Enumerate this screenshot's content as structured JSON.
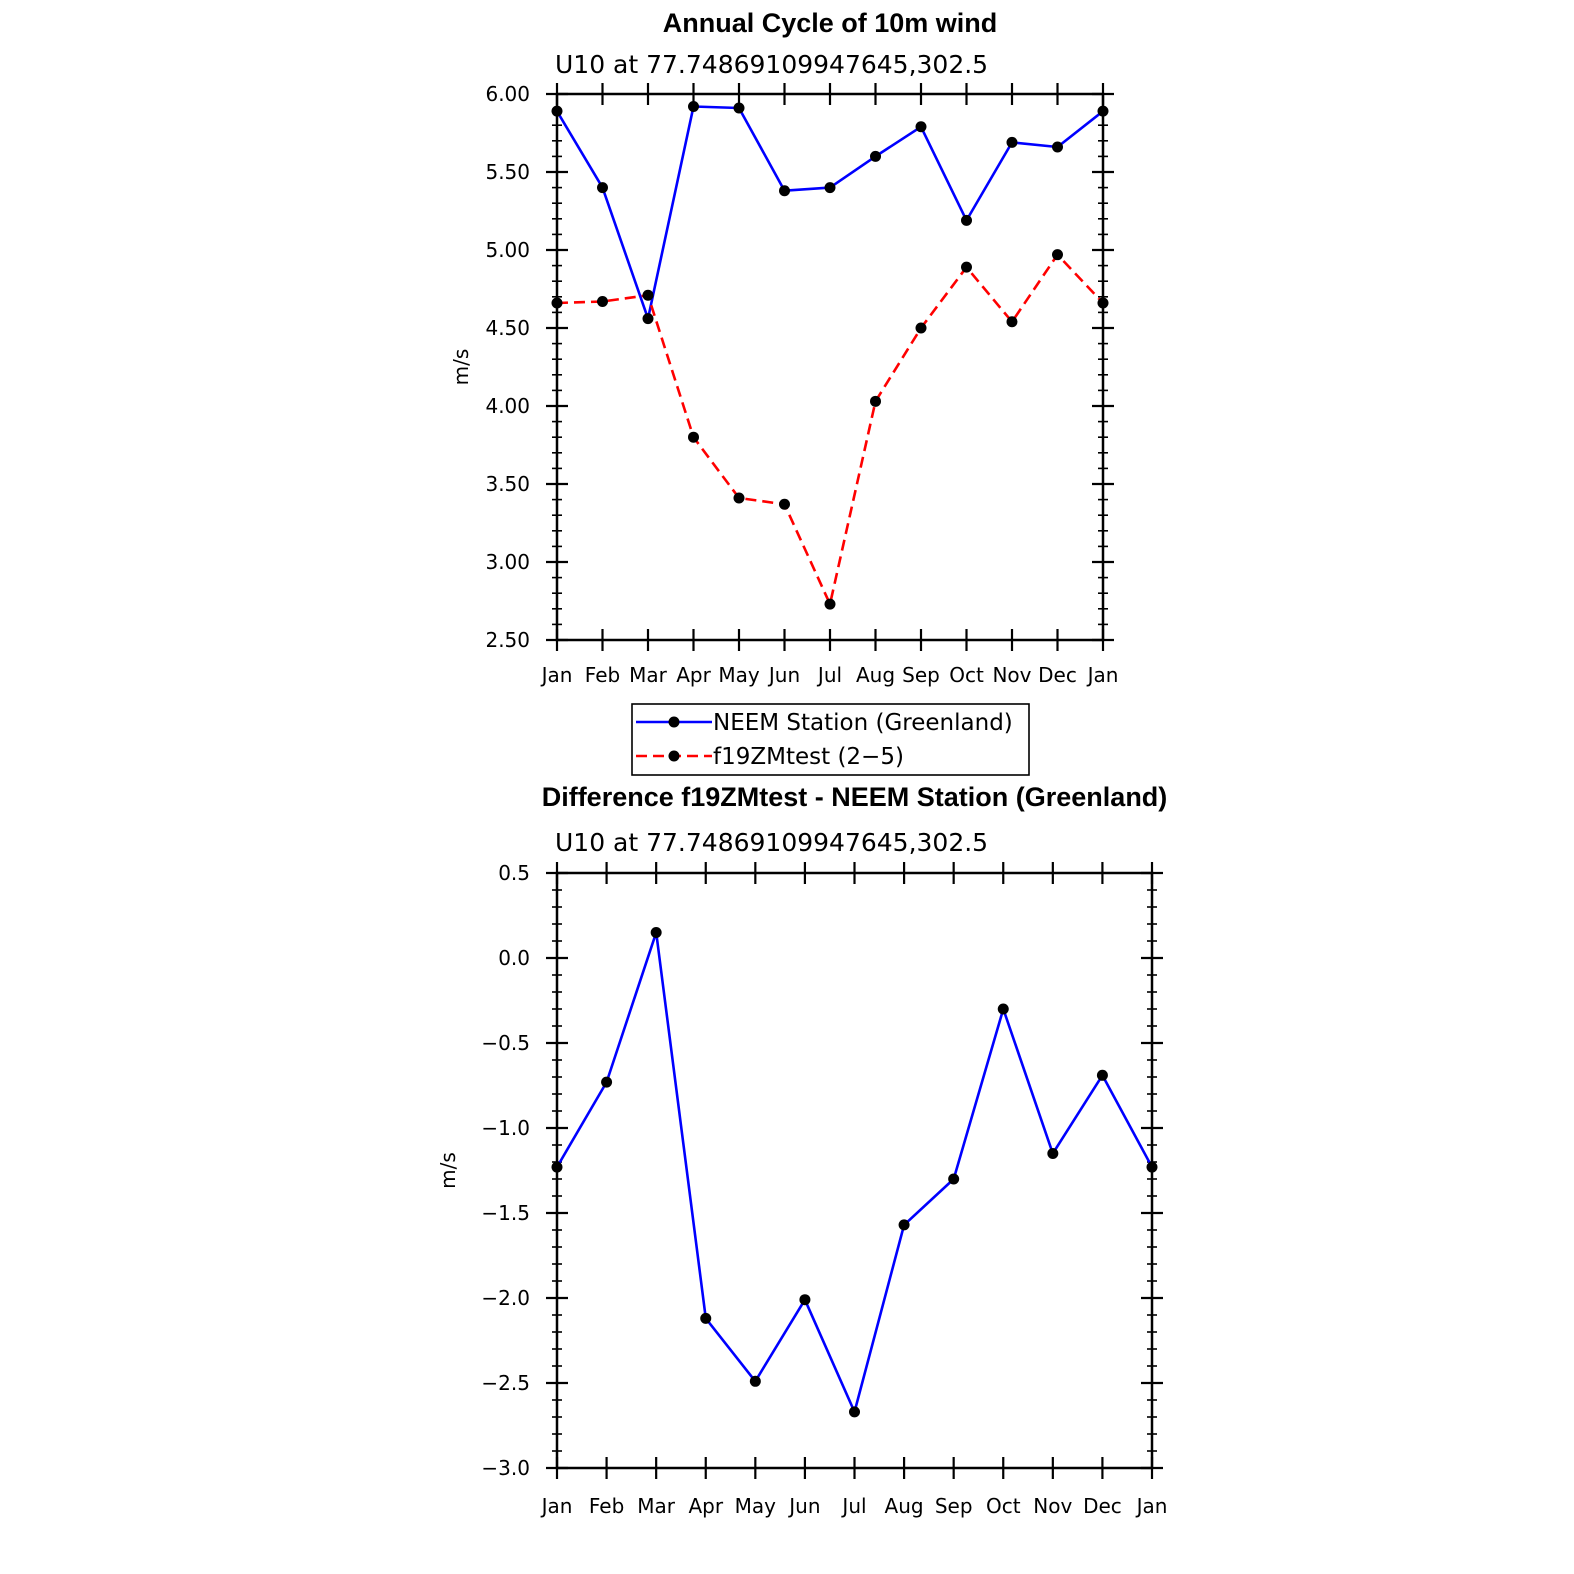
{
  "chart_data": [
    {
      "type": "line",
      "title": "Annual Cycle of 10m wind",
      "subtitle": "U10  at  77.74869109947645,302.5",
      "xlabel": "",
      "ylabel": "m/s",
      "categories": [
        "Jan",
        "Feb",
        "Mar",
        "Apr",
        "May",
        "Jun",
        "Jul",
        "Aug",
        "Sep",
        "Oct",
        "Nov",
        "Dec",
        "Jan"
      ],
      "ylim": [
        2.5,
        6.0
      ],
      "yticks": [
        "2.50",
        "3.00",
        "3.50",
        "4.00",
        "4.50",
        "5.00",
        "5.50",
        "6.00"
      ],
      "grid": false,
      "legend_position": "bottom",
      "series": [
        {
          "name": "NEEM Station (Greenland)",
          "color": "#0000ff",
          "dash": "solid",
          "marker": "dot",
          "values": [
            5.89,
            5.4,
            4.56,
            5.92,
            5.91,
            5.38,
            5.4,
            5.6,
            5.79,
            5.19,
            5.69,
            5.66,
            5.89
          ]
        },
        {
          "name": "f19ZMtest (2−5)",
          "color": "#ff0000",
          "dash": "dashed",
          "marker": "dot",
          "values": [
            4.66,
            4.67,
            4.71,
            3.8,
            3.41,
            3.37,
            2.73,
            4.03,
            4.5,
            4.89,
            4.54,
            4.97,
            4.66
          ]
        }
      ]
    },
    {
      "type": "line",
      "title": "Difference f19ZMtest - NEEM Station (Greenland)",
      "subtitle": "U10  at  77.74869109947645,302.5",
      "xlabel": "",
      "ylabel": "m/s",
      "categories": [
        "Jan",
        "Feb",
        "Mar",
        "Apr",
        "May",
        "Jun",
        "Jul",
        "Aug",
        "Sep",
        "Oct",
        "Nov",
        "Dec",
        "Jan"
      ],
      "ylim": [
        -3.0,
        0.5
      ],
      "yticks": [
        "−3.0",
        "−2.5",
        "−2.0",
        "−1.5",
        "−1.0",
        "−0.5",
        "0.0",
        "0.5"
      ],
      "grid": false,
      "series": [
        {
          "color": "#0000ff",
          "dash": "solid",
          "marker": "dot",
          "values": [
            -1.23,
            -0.73,
            0.15,
            -2.12,
            -2.49,
            -2.01,
            -2.67,
            -1.57,
            -1.3,
            -0.3,
            -1.15,
            -0.69,
            -1.23
          ]
        }
      ]
    }
  ]
}
